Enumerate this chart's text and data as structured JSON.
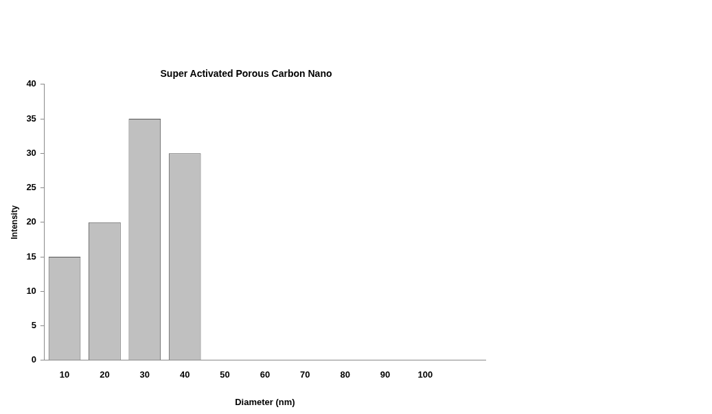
{
  "chart_data": {
    "type": "bar",
    "title": "Super Activated Porous Carbon Nano",
    "xlabel": "Diameter (nm)",
    "ylabel": "Intensity",
    "categories": [
      "10",
      "20",
      "30",
      "40",
      "50",
      "60",
      "70",
      "80",
      "90",
      "100",
      null
    ],
    "values": [
      15,
      20,
      35,
      30,
      0,
      0,
      0,
      0,
      0,
      0,
      null
    ],
    "color": "#c0c0c0",
    "ylim": [
      0,
      40
    ],
    "yticks": [
      0,
      5,
      10,
      15,
      20,
      25,
      30,
      35,
      40
    ],
    "grid": false,
    "legend": false
  }
}
